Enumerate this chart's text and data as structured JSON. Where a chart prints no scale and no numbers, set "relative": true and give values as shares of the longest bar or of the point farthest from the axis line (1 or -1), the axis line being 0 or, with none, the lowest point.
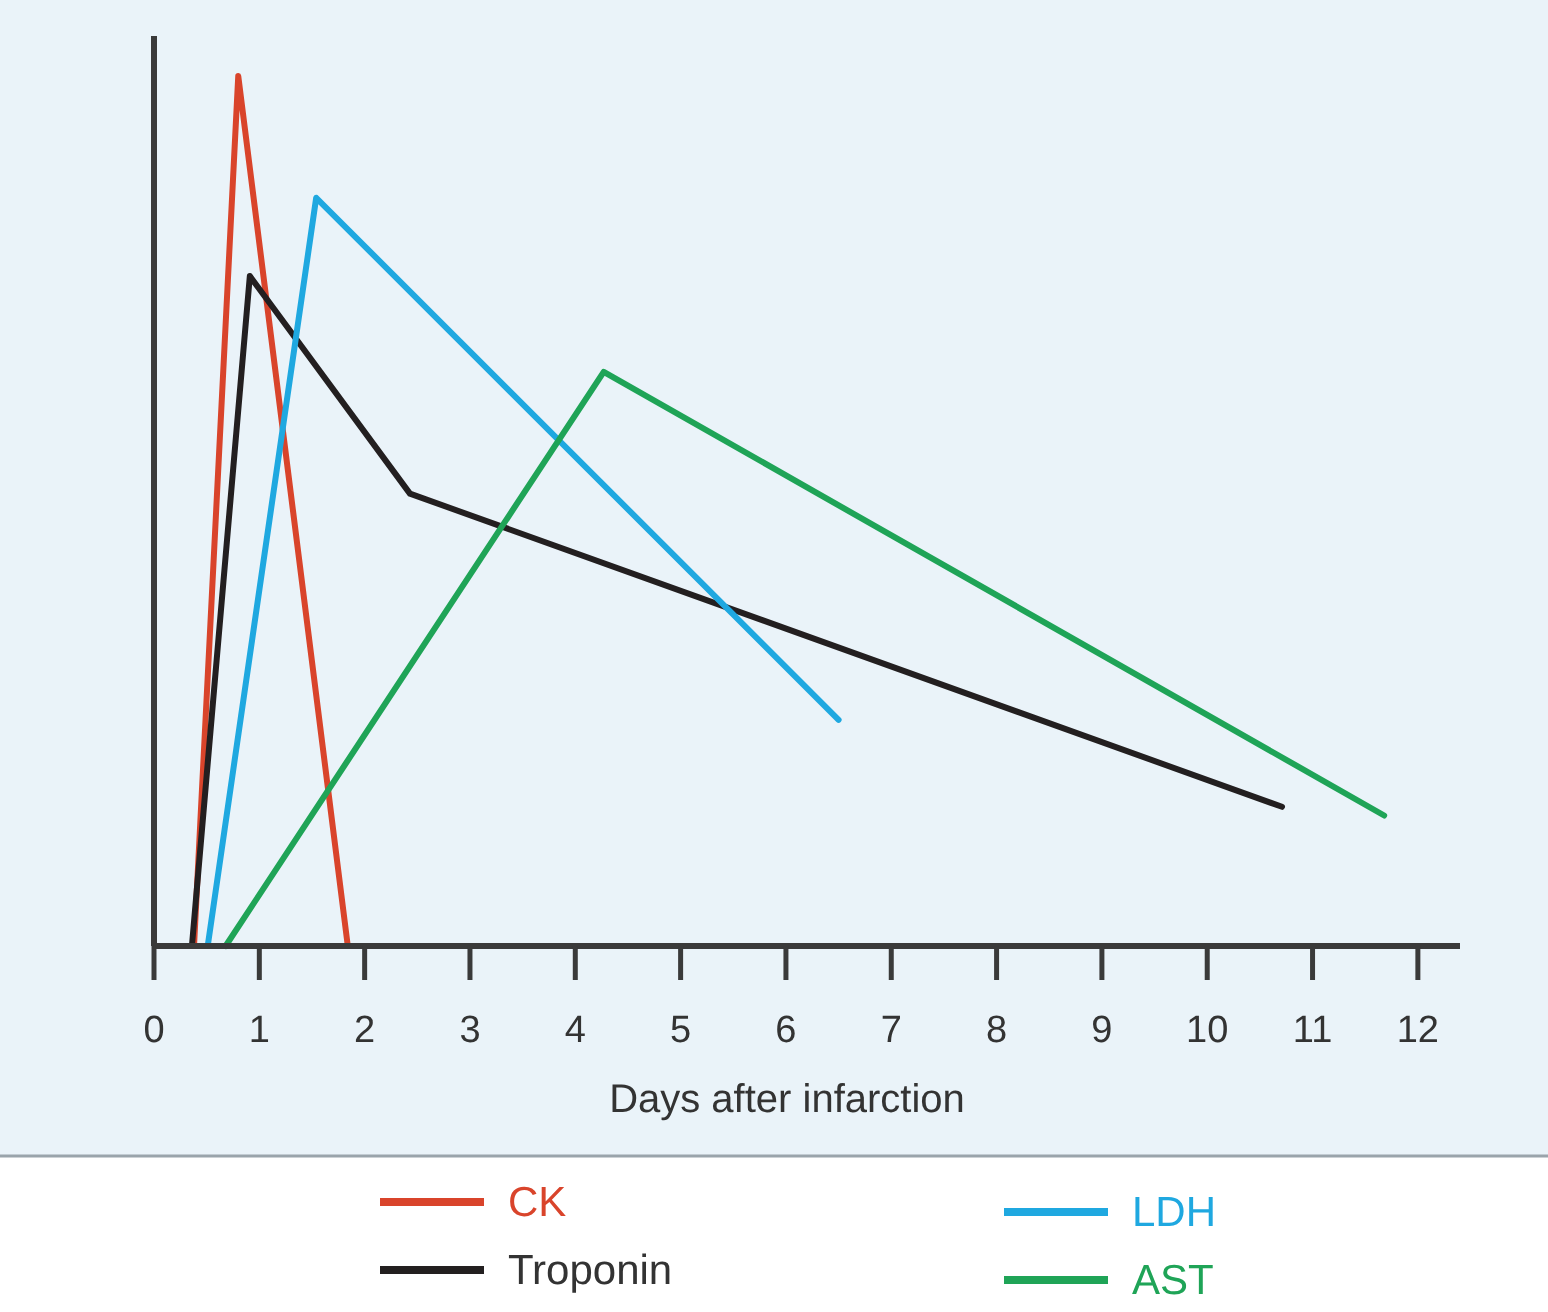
{
  "chart_data": {
    "type": "line",
    "xlabel": "Days after infarction",
    "relative": true,
    "xlim": [
      0,
      12.4
    ],
    "xticks": [
      0,
      1,
      2,
      3,
      4,
      5,
      6,
      7,
      8,
      9,
      10,
      11,
      12
    ],
    "grid": false,
    "legend": "bottom",
    "marker": "none",
    "line_style": "solid",
    "series": [
      {
        "name": "CK",
        "color": "#d9442b",
        "x": [
          0.38,
          0.8,
          1.84
        ],
        "values": [
          0,
          1,
          0
        ]
      },
      {
        "name": "Troponin",
        "color": "#231f20",
        "x": [
          0.36,
          0.91,
          2.43,
          10.71
        ],
        "values": [
          0,
          0.77,
          0.52,
          0.16
        ]
      },
      {
        "name": "LDH",
        "color": "#1fa8e0",
        "x": [
          0.51,
          1.54,
          6.5
        ],
        "values": [
          0,
          0.86,
          0.26
        ]
      },
      {
        "name": "AST",
        "color": "#1fa457",
        "x": [
          0.68,
          4.27,
          11.68
        ],
        "values": [
          0,
          0.66,
          0.15
        ]
      }
    ]
  }
}
